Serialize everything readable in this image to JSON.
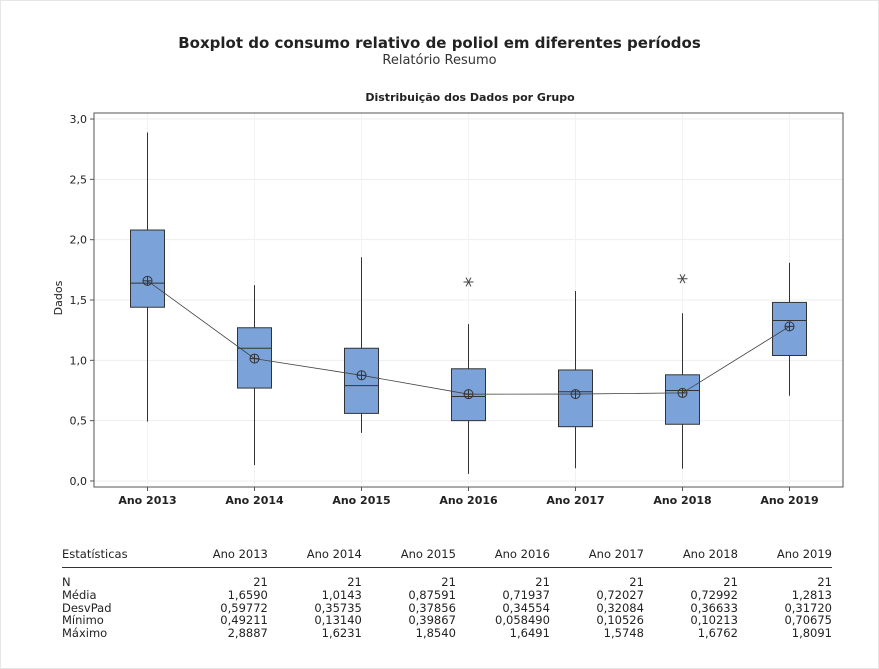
{
  "header": {
    "title": "Boxplot do consumo relativo de poliol em diferentes períodos",
    "subtitle": "Relatório Resumo"
  },
  "chart_data": {
    "type": "boxplot",
    "title": "Distribuição dos Dados por Grupo",
    "ylabel": "Dados",
    "xlabel": "",
    "ylim": [
      -0.05,
      3.05
    ],
    "yticks": [
      "0,0",
      "0,5",
      "1,0",
      "1,5",
      "2,0",
      "2,5",
      "3,0"
    ],
    "ytick_values": [
      0,
      0.5,
      1.0,
      1.5,
      2.0,
      2.5,
      3.0
    ],
    "categories": [
      "Ano 2013",
      "Ano 2014",
      "Ano 2015",
      "Ano 2016",
      "Ano 2017",
      "Ano 2018",
      "Ano 2019"
    ],
    "boxes": [
      {
        "min": 0.49211,
        "q1": 1.44,
        "median": 1.64,
        "q3": 2.08,
        "max": 2.8887,
        "mean": 1.659,
        "outliers": []
      },
      {
        "min": 0.1314,
        "q1": 0.77,
        "median": 1.1,
        "q3": 1.27,
        "max": 1.6231,
        "mean": 1.0143,
        "outliers": []
      },
      {
        "min": 0.39867,
        "q1": 0.56,
        "median": 0.79,
        "q3": 1.1,
        "max": 1.854,
        "mean": 0.87591,
        "outliers": []
      },
      {
        "min": 0.05849,
        "q1": 0.5,
        "median": 0.7,
        "q3": 0.93,
        "max": 1.3,
        "mean": 0.71937,
        "outliers": [
          1.6491
        ]
      },
      {
        "min": 0.10526,
        "q1": 0.45,
        "median": 0.74,
        "q3": 0.92,
        "max": 1.5748,
        "mean": 0.72027,
        "outliers": []
      },
      {
        "min": 0.10213,
        "q1": 0.47,
        "median": 0.75,
        "q3": 0.88,
        "max": 1.39,
        "mean": 0.72992,
        "outliers": [
          1.6762
        ]
      },
      {
        "min": 0.70675,
        "q1": 1.04,
        "median": 1.33,
        "q3": 1.48,
        "max": 1.8091,
        "mean": 1.2813,
        "outliers": []
      }
    ],
    "box_color": "#7ba3da",
    "box_edge_color": "#333333",
    "grid": true,
    "connect_means": true
  },
  "stats_table": {
    "header_label": "Estatísticas",
    "columns": [
      "Ano 2013",
      "Ano 2014",
      "Ano 2015",
      "Ano 2016",
      "Ano 2017",
      "Ano 2018",
      "Ano 2019"
    ],
    "rows": [
      {
        "label": "N",
        "values": [
          "21",
          "21",
          "21",
          "21",
          "21",
          "21",
          "21"
        ]
      },
      {
        "label": "Média",
        "values": [
          "1,6590",
          "1,0143",
          "0,87591",
          "0,71937",
          "0,72027",
          "0,72992",
          "1,2813"
        ]
      },
      {
        "label": "DesvPad",
        "values": [
          "0,59772",
          "0,35735",
          "0,37856",
          "0,34554",
          "0,32084",
          "0,36633",
          "0,31720"
        ]
      },
      {
        "label": "Mínimo",
        "values": [
          "0,49211",
          "0,13140",
          "0,39867",
          "0,058490",
          "0,10526",
          "0,10213",
          "0,70675"
        ]
      },
      {
        "label": "Máximo",
        "values": [
          "2,8887",
          "1,6231",
          "1,8540",
          "1,6491",
          "1,5748",
          "1,6762",
          "1,8091"
        ]
      }
    ]
  }
}
